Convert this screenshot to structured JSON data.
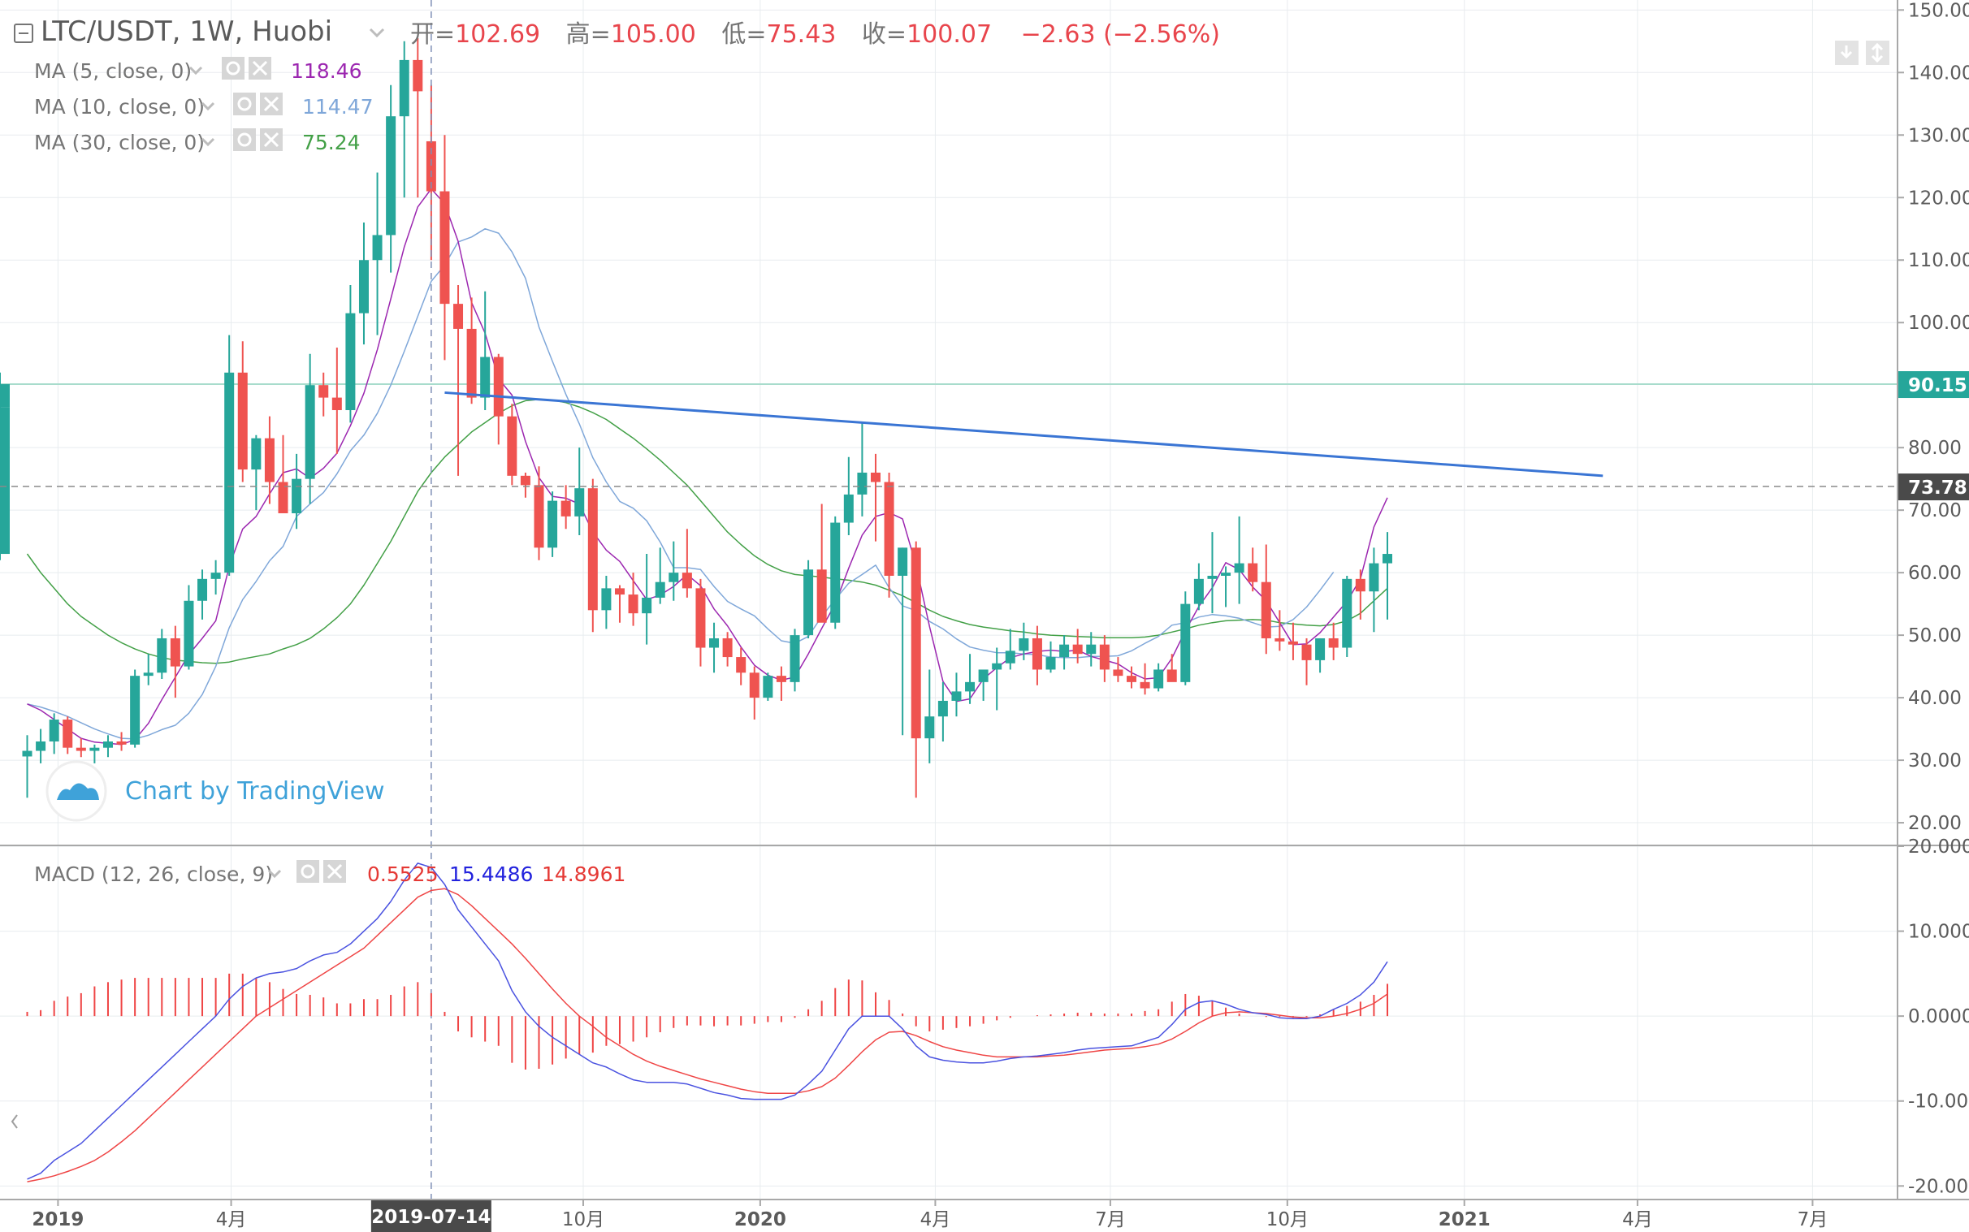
{
  "symbol": {
    "title": "LTC/USDT, 1W, Huobi",
    "open_label": "开=",
    "open": "102.69",
    "high_label": "高=",
    "high": "105.00",
    "low_label": "低=",
    "low": "75.43",
    "close_label": "收=",
    "close": "100.07",
    "change": "−2.63 (−2.56%)"
  },
  "indicators": {
    "ma5": {
      "label": "MA (5, close, 0)",
      "value": "118.46",
      "color": "#9c27b0"
    },
    "ma10": {
      "label": "MA (10, close, 0)",
      "value": "114.47",
      "color": "#7fa7d9"
    },
    "ma30": {
      "label": "MA (30, close, 0)",
      "value": "75.24",
      "color": "#43a047"
    },
    "macd": {
      "label": "MACD (12, 26, close, 9)",
      "hist": "0.5525",
      "macd": "15.4486",
      "signal": "14.8961"
    }
  },
  "watermark": "Chart by TradingView",
  "price_axis": {
    "ticks": [
      "150.00",
      "140.00",
      "130.00",
      "120.00",
      "110.00",
      "100.00",
      "90.15",
      "80.00",
      "73.78",
      "70.00",
      "60.00",
      "50.00",
      "40.00",
      "30.00",
      "20.00"
    ],
    "last_price": "90.15",
    "crosshair_price": "73.78"
  },
  "macd_axis": {
    "ticks": [
      "20.000",
      "10.000",
      "0.0000",
      "-10.000",
      "-20.000"
    ]
  },
  "time_axis": {
    "labels": [
      "2019",
      "4月",
      "10月",
      "2020",
      "4月",
      "7月",
      "10月",
      "2021",
      "4月",
      "7月"
    ],
    "crosshair_date": "2019-07-14"
  },
  "colors": {
    "up": "#26a69a",
    "down": "#ef5350",
    "trendline": "#3a75d4",
    "grid": "#e8ecef",
    "last_price_line": "#a8dccc"
  },
  "chart_data": {
    "type": "candlestick",
    "interval": "1W",
    "x": [
      "2018-12-16",
      "2018-12-23",
      "2018-12-30",
      "2019-01-06",
      "2019-01-13",
      "2019-01-20",
      "2019-01-27",
      "2019-02-03",
      "2019-02-10",
      "2019-02-17",
      "2019-02-24",
      "2019-03-03",
      "2019-03-10",
      "2019-03-17",
      "2019-03-24",
      "2019-03-31",
      "2019-04-07",
      "2019-04-14",
      "2019-04-21",
      "2019-04-28",
      "2019-05-05",
      "2019-05-12",
      "2019-05-19",
      "2019-05-26",
      "2019-06-02",
      "2019-06-09",
      "2019-06-16",
      "2019-06-23",
      "2019-06-30",
      "2019-07-07",
      "2019-07-14",
      "2019-07-21",
      "2019-07-28",
      "2019-08-04",
      "2019-08-11",
      "2019-08-18",
      "2019-08-25",
      "2019-09-01",
      "2019-09-08",
      "2019-09-15",
      "2019-09-22",
      "2019-09-29",
      "2019-10-06",
      "2019-10-13",
      "2019-10-20",
      "2019-10-27",
      "2019-11-03",
      "2019-11-10",
      "2019-11-17",
      "2019-11-24",
      "2019-12-01",
      "2019-12-08",
      "2019-12-15",
      "2019-12-22",
      "2019-12-29",
      "2020-01-05",
      "2020-01-12",
      "2020-01-19",
      "2020-01-26",
      "2020-02-02",
      "2020-02-09",
      "2020-02-16",
      "2020-02-23",
      "2020-03-01",
      "2020-03-08",
      "2020-03-15",
      "2020-03-22",
      "2020-03-29",
      "2020-04-05",
      "2020-04-12",
      "2020-04-19",
      "2020-04-26",
      "2020-05-03",
      "2020-05-10",
      "2020-05-17",
      "2020-05-24",
      "2020-05-31",
      "2020-06-07",
      "2020-06-14",
      "2020-06-21",
      "2020-06-28",
      "2020-07-05",
      "2020-07-12",
      "2020-07-19",
      "2020-07-26",
      "2020-08-02",
      "2020-08-09",
      "2020-08-16",
      "2020-08-23",
      "2020-08-30",
      "2020-09-06",
      "2020-09-13",
      "2020-09-20",
      "2020-09-27",
      "2020-10-04",
      "2020-10-11",
      "2020-10-18",
      "2020-10-25",
      "2020-11-01",
      "2020-11-08",
      "2020-11-15",
      "2020-11-22"
    ],
    "ohlc": [
      [
        30.6,
        34.0,
        24.0,
        31.5
      ],
      [
        31.5,
        35.0,
        29.5,
        33.0
      ],
      [
        33.0,
        37.5,
        31.0,
        36.5
      ],
      [
        36.5,
        37.0,
        31.0,
        32.0
      ],
      [
        32.0,
        33.5,
        30.5,
        31.5
      ],
      [
        31.5,
        32.5,
        29.5,
        32.0
      ],
      [
        32.0,
        34.0,
        30.5,
        33.0
      ],
      [
        33.0,
        34.5,
        31.5,
        32.5
      ],
      [
        32.5,
        44.5,
        32.0,
        43.5
      ],
      [
        43.5,
        47.0,
        42.0,
        44.0
      ],
      [
        44.0,
        51.0,
        43.0,
        49.5
      ],
      [
        49.5,
        51.5,
        40.0,
        45.0
      ],
      [
        45.0,
        58.0,
        44.5,
        55.5
      ],
      [
        55.5,
        60.5,
        52.5,
        59.0
      ],
      [
        59.0,
        62.0,
        56.5,
        60.0
      ],
      [
        60.0,
        98.0,
        59.5,
        92.0
      ],
      [
        92.0,
        97.0,
        74.5,
        76.5
      ],
      [
        76.5,
        82.0,
        70.0,
        81.5
      ],
      [
        81.5,
        85.0,
        71.0,
        74.5
      ],
      [
        74.5,
        82.0,
        70.0,
        69.5
      ],
      [
        69.5,
        79.0,
        67.0,
        75.0
      ],
      [
        75.0,
        95.0,
        71.0,
        90.0
      ],
      [
        90.0,
        92.0,
        85.0,
        88.0
      ],
      [
        88.0,
        96.0,
        79.0,
        86.0
      ],
      [
        86.0,
        106.0,
        84.0,
        101.5
      ],
      [
        101.5,
        116.0,
        96.5,
        110.0
      ],
      [
        110.0,
        124.0,
        98.0,
        114.0
      ],
      [
        114.0,
        138.0,
        108.0,
        133.0
      ],
      [
        133.0,
        145.0,
        120.0,
        142.0
      ],
      [
        142.0,
        145.5,
        120.0,
        137.0
      ],
      [
        129.0,
        138.0,
        110.0,
        121.0
      ],
      [
        121.0,
        130.0,
        94.0,
        103.0
      ],
      [
        103.0,
        106.0,
        75.5,
        99.0
      ],
      [
        99.0,
        104.0,
        87.0,
        88.0
      ],
      [
        88.0,
        105.0,
        86.0,
        94.5
      ],
      [
        94.5,
        95.0,
        80.5,
        85.0
      ],
      [
        85.0,
        87.0,
        74.0,
        75.5
      ],
      [
        75.5,
        76.0,
        72.0,
        74.0
      ],
      [
        74.0,
        77.0,
        62.0,
        64.0
      ],
      [
        64.0,
        73.0,
        62.5,
        71.5
      ],
      [
        71.5,
        74.0,
        67.0,
        69.0
      ],
      [
        69.0,
        80.0,
        66.0,
        73.5
      ],
      [
        73.5,
        75.0,
        50.5,
        54.0
      ],
      [
        54.0,
        59.5,
        51.0,
        57.5
      ],
      [
        57.5,
        58.0,
        52.0,
        56.5
      ],
      [
        56.5,
        60.0,
        51.5,
        53.5
      ],
      [
        53.5,
        63.0,
        48.5,
        56.0
      ],
      [
        56.0,
        64.0,
        55.0,
        58.5
      ],
      [
        58.5,
        65.0,
        55.5,
        60.0
      ],
      [
        60.0,
        67.0,
        56.0,
        57.5
      ],
      [
        57.5,
        59.0,
        45.0,
        48.0
      ],
      [
        48.0,
        52.0,
        44.0,
        49.5
      ],
      [
        49.5,
        50.5,
        45.0,
        46.5
      ],
      [
        46.5,
        48.0,
        42.0,
        44.0
      ],
      [
        44.0,
        45.0,
        36.5,
        40.0
      ],
      [
        40.0,
        44.0,
        39.5,
        43.5
      ],
      [
        43.5,
        45.0,
        39.5,
        42.5
      ],
      [
        42.5,
        51.0,
        41.0,
        50.0
      ],
      [
        50.0,
        62.0,
        49.5,
        60.5
      ],
      [
        60.5,
        71.0,
        53.0,
        52.0
      ],
      [
        52.0,
        69.0,
        51.0,
        68.0
      ],
      [
        68.0,
        78.5,
        66.0,
        72.5
      ],
      [
        72.5,
        84.0,
        69.0,
        76.0
      ],
      [
        76.0,
        79.0,
        65.0,
        74.5
      ],
      [
        74.5,
        76.0,
        56.0,
        59.5
      ],
      [
        59.5,
        64.0,
        34.0,
        64.0
      ],
      [
        64.0,
        65.0,
        24.0,
        33.5
      ],
      [
        33.5,
        44.5,
        29.5,
        37.0
      ],
      [
        37.0,
        42.5,
        33.0,
        39.5
      ],
      [
        39.5,
        44.0,
        37.0,
        41.0
      ],
      [
        41.0,
        47.0,
        39.0,
        42.5
      ],
      [
        42.5,
        44.0,
        39.5,
        44.5
      ],
      [
        44.5,
        48.0,
        38.0,
        45.5
      ],
      [
        45.5,
        51.0,
        44.5,
        47.5
      ],
      [
        47.5,
        52.0,
        46.0,
        49.5
      ],
      [
        49.5,
        51.5,
        42.0,
        44.5
      ],
      [
        44.5,
        49.0,
        44.0,
        46.5
      ],
      [
        46.5,
        50.0,
        44.5,
        48.5
      ],
      [
        48.5,
        51.0,
        45.5,
        47.0
      ],
      [
        47.0,
        50.5,
        45.0,
        48.5
      ],
      [
        48.5,
        50.0,
        42.5,
        44.5
      ],
      [
        44.5,
        46.5,
        42.5,
        43.5
      ],
      [
        43.5,
        45.0,
        41.5,
        42.5
      ],
      [
        42.5,
        45.5,
        40.5,
        41.5
      ],
      [
        41.5,
        45.5,
        41.0,
        44.5
      ],
      [
        44.5,
        47.0,
        43.5,
        42.5
      ],
      [
        42.5,
        57.0,
        42.0,
        55.0
      ],
      [
        55.0,
        61.5,
        54.0,
        59.0
      ],
      [
        59.0,
        66.5,
        53.5,
        59.5
      ],
      [
        59.5,
        61.0,
        54.5,
        60.0
      ],
      [
        60.0,
        69.0,
        55.0,
        61.5
      ],
      [
        61.5,
        64.0,
        57.0,
        58.5
      ],
      [
        58.5,
        64.5,
        47.0,
        49.5
      ],
      [
        49.5,
        54.0,
        47.5,
        49.0
      ],
      [
        49.0,
        52.0,
        46.0,
        48.5
      ],
      [
        48.5,
        49.5,
        42.0,
        46.0
      ],
      [
        46.0,
        49.5,
        44.0,
        49.5
      ],
      [
        49.5,
        52.0,
        46.0,
        48.0
      ],
      [
        48.0,
        59.5,
        46.5,
        59.0
      ],
      [
        59.0,
        60.5,
        52.5,
        57.0
      ],
      [
        57.0,
        64.0,
        50.5,
        61.5
      ],
      [
        61.5,
        66.5,
        52.5,
        63.0
      ],
      [
        63.0,
        87.5,
        62.0,
        86.5
      ],
      [
        86.5,
        92.0,
        78.0,
        90.15
      ]
    ],
    "ma5": [
      39.0,
      38.0,
      36.5,
      35.0,
      33.5,
      32.9,
      32.7,
      32.5,
      33.3,
      35.9,
      39.7,
      43.3,
      46.9,
      49.5,
      52.3,
      61.0,
      67.0,
      69.0,
      72.6,
      76.0,
      76.6,
      75.1,
      76.7,
      79.1,
      83.5,
      88.7,
      95.7,
      103.8,
      112.1,
      118.5,
      121.4,
      119.0,
      113.0,
      103.2,
      98.3,
      91.0,
      88.4,
      81.0,
      75.2,
      72.2,
      71.9,
      71.0,
      66.5,
      63.6,
      61.8,
      58.7,
      55.7,
      56.4,
      57.8,
      59.7,
      57.9,
      54.2,
      51.5,
      48.1,
      45.2,
      43.6,
      42.8,
      43.3,
      47.0,
      51.1,
      55.0,
      60.7,
      66.0,
      69.0,
      69.6,
      68.6,
      61.2,
      51.4,
      42.6,
      39.4,
      39.8,
      43.0,
      44.8,
      46.4,
      47.0,
      47.4,
      47.6,
      47.4,
      47.6,
      46.6,
      46.0,
      45.4,
      44.0,
      43.0,
      43.2,
      46.3,
      50.7,
      54.6,
      57.6,
      61.6,
      60.5,
      57.7,
      55.5,
      52.0,
      48.5,
      48.6,
      50.4,
      52.9,
      55.4,
      59.0,
      67.3,
      72.0
    ],
    "ma10": [
      39.0,
      38.5,
      37.8,
      37.0,
      36.0,
      35.0,
      34.2,
      33.5,
      33.4,
      34.0,
      34.9,
      35.6,
      37.5,
      40.5,
      45.0,
      51.2,
      55.7,
      58.6,
      61.9,
      64.2,
      69.0,
      71.0,
      72.8,
      75.8,
      79.5,
      82.0,
      85.5,
      90.0,
      95.4,
      101.0,
      106.6,
      109.2,
      112.9,
      113.7,
      115.0,
      114.3,
      111.3,
      107.1,
      99.3,
      93.8,
      88.5,
      83.8,
      78.4,
      74.5,
      71.4,
      70.3,
      68.3,
      64.9,
      60.8,
      60.8,
      60.5,
      57.8,
      55.4,
      54.2,
      53.1,
      51.0,
      49.1,
      48.7,
      49.8,
      53.0,
      55.7,
      58.3,
      59.7,
      61.2,
      57.6,
      54.7,
      53.9,
      52.2,
      51.0,
      49.4,
      48.1,
      47.6,
      47.2,
      47.2,
      47.0,
      46.9,
      46.5,
      46.4,
      46.4,
      46.6,
      46.6,
      46.7,
      47.5,
      48.7,
      49.8,
      51.6,
      52.0,
      52.9,
      53.3,
      53.1,
      52.7,
      52.0,
      51.3,
      51.4,
      52.5,
      54.5,
      57.2,
      60.1
    ],
    "ma30": [
      63.0,
      60.0,
      57.5,
      55.0,
      53.0,
      51.5,
      50.0,
      48.8,
      47.8,
      47.0,
      46.4,
      46.0,
      45.8,
      45.6,
      45.5,
      45.7,
      46.2,
      46.6,
      47.0,
      47.8,
      48.5,
      49.5,
      51.0,
      52.8,
      55.0,
      58.0,
      61.5,
      65.0,
      69.0,
      73.0,
      76.0,
      78.5,
      80.5,
      82.5,
      84.0,
      85.5,
      86.7,
      87.5,
      87.7,
      87.6,
      87.2,
      86.5,
      85.6,
      84.5,
      83.0,
      81.5,
      79.8,
      78.0,
      76.0,
      74.0,
      71.5,
      69.0,
      66.5,
      64.5,
      62.7,
      61.3,
      60.3,
      59.7,
      59.5,
      59.3,
      59.0,
      58.8,
      58.5,
      58.0,
      57.2,
      56.3,
      55.2,
      54.0,
      53.0,
      52.3,
      51.7,
      51.3,
      51.0,
      50.7,
      50.5,
      50.2,
      50.0,
      49.9,
      49.8,
      49.7,
      49.6,
      49.6,
      49.6,
      49.7,
      50.0,
      50.5,
      51.0,
      51.6,
      52.0,
      52.3,
      52.4,
      52.5,
      52.4,
      52.0,
      51.8,
      51.6,
      51.5,
      51.7,
      52.3,
      53.5,
      55.5,
      57.5
    ],
    "macd": [
      -19.2,
      -18.5,
      -17.0,
      -16.0,
      -15.0,
      -13.5,
      -12.0,
      -10.5,
      -9.0,
      -7.5,
      -6.0,
      -4.5,
      -3.0,
      -1.5,
      0.0,
      2.0,
      3.5,
      4.5,
      5.0,
      5.2,
      5.6,
      6.5,
      7.2,
      7.5,
      8.5,
      10.0,
      11.5,
      13.5,
      16.0,
      18.0,
      17.5,
      15.5,
      12.5,
      10.5,
      8.5,
      6.5,
      3.0,
      0.5,
      -1.2,
      -2.5,
      -3.5,
      -4.5,
      -5.5,
      -6.0,
      -6.8,
      -7.5,
      -7.8,
      -7.8,
      -7.8,
      -8.0,
      -8.5,
      -9.0,
      -9.3,
      -9.7,
      -9.8,
      -9.8,
      -9.8,
      -9.3,
      -8.0,
      -6.5,
      -4.0,
      -1.5,
      0.0,
      0.0,
      0.0,
      -1.5,
      -3.5,
      -4.8,
      -5.2,
      -5.4,
      -5.5,
      -5.5,
      -5.3,
      -5.0,
      -4.8,
      -4.7,
      -4.5,
      -4.3,
      -4.0,
      -3.8,
      -3.7,
      -3.6,
      -3.5,
      -3.0,
      -2.5,
      -1.0,
      0.8,
      1.6,
      1.8,
      1.4,
      0.8,
      0.4,
      0.2,
      -0.2,
      -0.3,
      -0.3,
      0.0,
      0.8,
      1.5,
      2.5,
      4.0,
      6.4
    ],
    "signal": [
      -19.5,
      -19.2,
      -18.8,
      -18.3,
      -17.7,
      -17.0,
      -16.0,
      -14.8,
      -13.5,
      -12.0,
      -10.5,
      -9.0,
      -7.5,
      -6.0,
      -4.5,
      -3.0,
      -1.5,
      0.0,
      1.0,
      2.0,
      3.0,
      4.0,
      5.0,
      6.0,
      7.0,
      8.0,
      9.5,
      11.0,
      12.5,
      14.0,
      14.8,
      15.0,
      14.3,
      13.0,
      11.5,
      10.0,
      8.5,
      6.8,
      5.0,
      3.2,
      1.5,
      0.0,
      -1.2,
      -2.5,
      -3.5,
      -4.5,
      -5.3,
      -5.9,
      -6.4,
      -6.9,
      -7.4,
      -7.8,
      -8.2,
      -8.6,
      -8.9,
      -9.1,
      -9.1,
      -9.1,
      -8.8,
      -8.3,
      -7.3,
      -5.8,
      -4.2,
      -2.8,
      -1.9,
      -1.8,
      -2.3,
      -3.0,
      -3.6,
      -4.0,
      -4.3,
      -4.6,
      -4.8,
      -4.8,
      -4.8,
      -4.8,
      -4.7,
      -4.6,
      -4.4,
      -4.2,
      -4.0,
      -3.9,
      -3.8,
      -3.6,
      -3.3,
      -2.7,
      -1.8,
      -0.8,
      0.0,
      0.4,
      0.5,
      0.4,
      0.3,
      0.1,
      -0.1,
      -0.2,
      -0.2,
      0.0,
      0.3,
      0.8,
      1.5,
      2.6
    ],
    "hist": [
      0.5,
      0.7,
      1.8,
      2.3,
      2.7,
      3.5,
      4.0,
      4.3,
      4.5,
      4.5,
      4.5,
      4.5,
      4.5,
      4.5,
      4.5,
      5.0,
      5.0,
      4.5,
      4.0,
      3.2,
      2.6,
      2.5,
      2.2,
      1.5,
      1.5,
      2.0,
      2.0,
      2.5,
      3.5,
      4.0,
      2.7,
      0.5,
      -1.8,
      -2.5,
      -3.0,
      -3.5,
      -5.5,
      -6.3,
      -6.2,
      -5.7,
      -5.0,
      -4.5,
      -4.3,
      -3.5,
      -3.3,
      -3.0,
      -2.5,
      -1.9,
      -1.4,
      -1.1,
      -1.1,
      -1.2,
      -1.1,
      -1.1,
      -0.9,
      -0.7,
      -0.7,
      -0.2,
      0.8,
      1.8,
      3.3,
      4.3,
      4.2,
      2.8,
      1.9,
      0.3,
      -1.2,
      -1.8,
      -1.6,
      -1.4,
      -1.2,
      -0.9,
      -0.5,
      -0.2,
      0.0,
      0.1,
      0.2,
      0.3,
      0.4,
      0.4,
      0.3,
      0.3,
      0.3,
      0.6,
      0.8,
      1.7,
      2.6,
      2.4,
      1.8,
      1.0,
      0.3,
      0.0,
      -0.1,
      -0.1,
      -0.2,
      -0.1,
      0.2,
      0.8,
      1.2,
      1.7,
      2.5,
      3.8
    ],
    "trendline": [
      {
        "x": "2019-07-21",
        "y": 88.8
      },
      {
        "x": "2021-03-14",
        "y": 75.5
      }
    ],
    "price_scale": {
      "min": 16.5,
      "max": 151.6
    },
    "macd_scale": {
      "min": -21.5,
      "max": 20.0
    },
    "x_range": [
      "2018-12-16",
      "2021-08-15"
    ],
    "last_price_line": 90.15,
    "crosshair": {
      "x": "2019-07-14",
      "y": 73.78
    }
  }
}
